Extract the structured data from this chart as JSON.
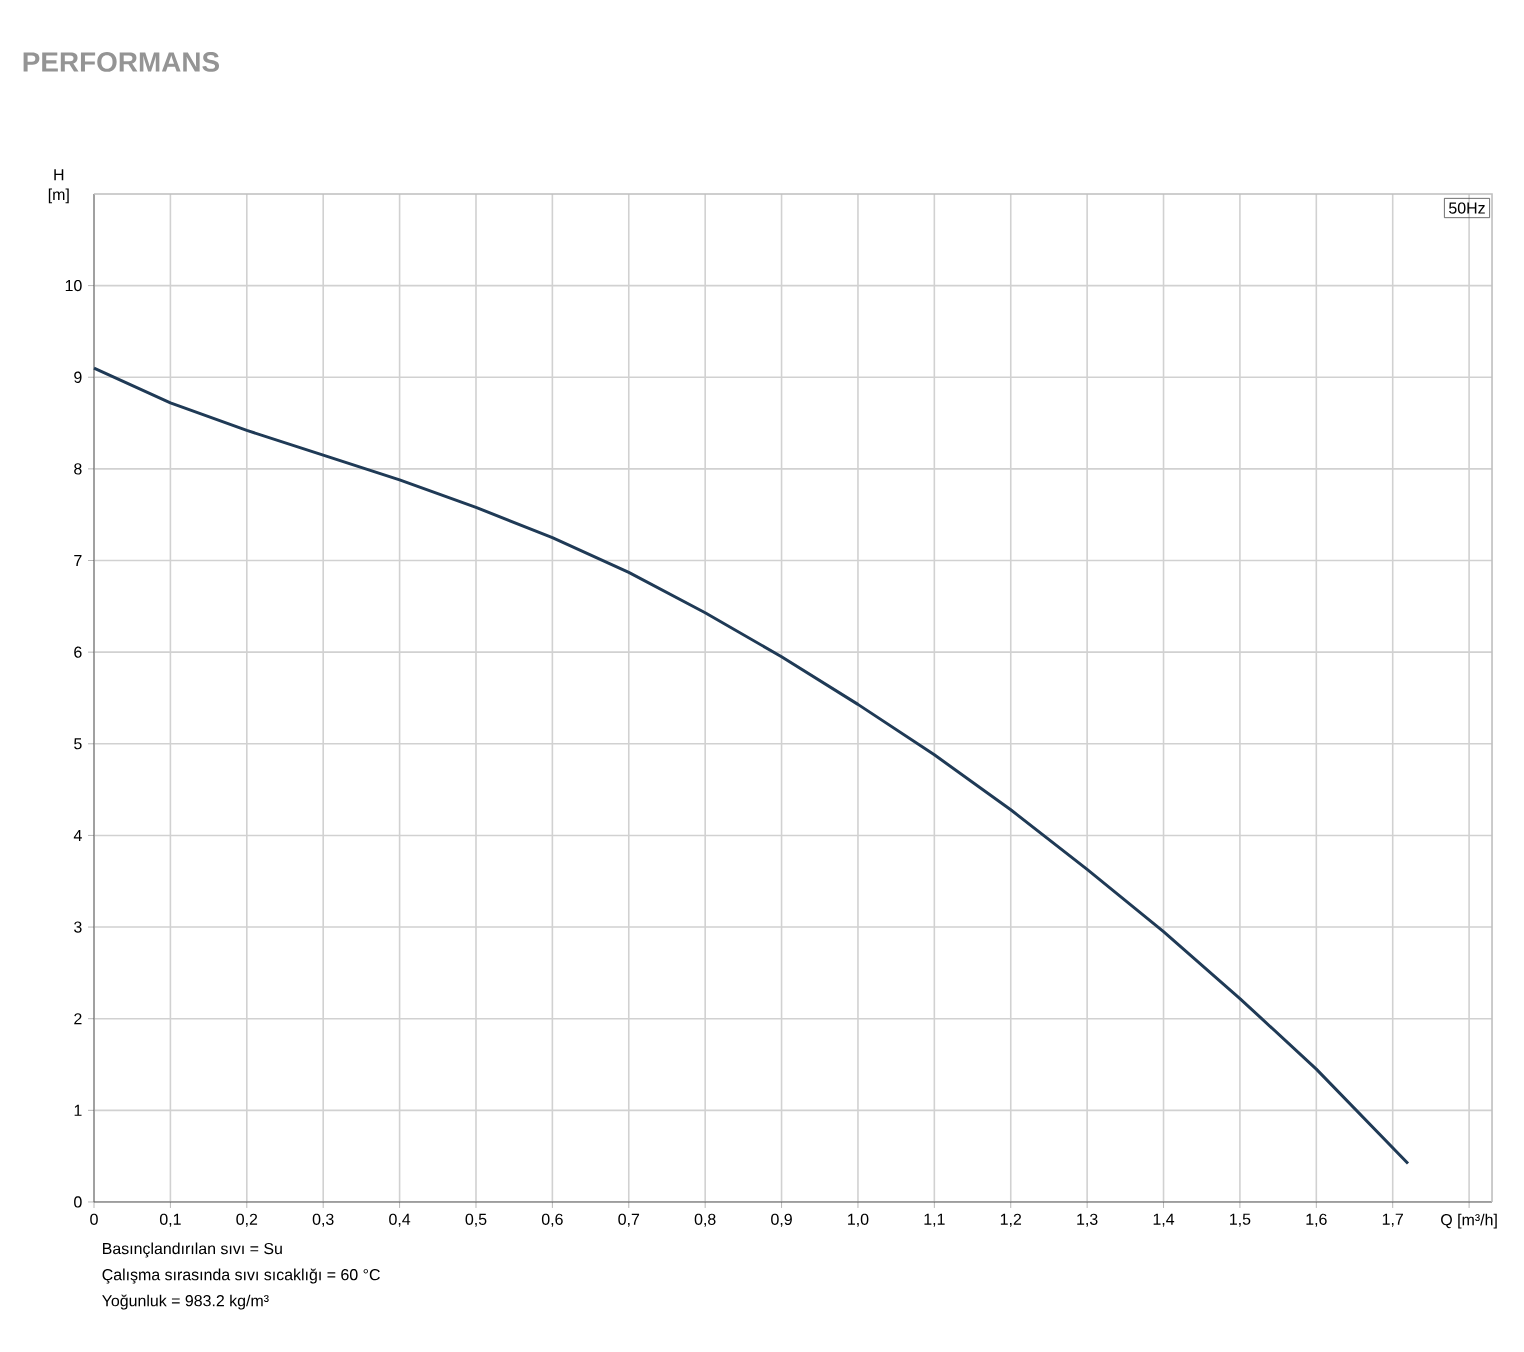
{
  "chart_data": {
    "type": "line",
    "title": "PERFORMANS",
    "xlabel": "Q [m³/h]",
    "ylabel": "H [m]",
    "x": [
      0,
      0.1,
      0.2,
      0.3,
      0.4,
      0.5,
      0.6,
      0.7,
      0.8,
      0.9,
      1.0,
      1.1,
      1.2,
      1.3,
      1.4,
      1.5,
      1.6,
      1.72
    ],
    "series": [
      {
        "color": "#1f3a56",
        "values": [
          9.1,
          8.72,
          8.42,
          8.15,
          7.88,
          7.58,
          7.25,
          6.87,
          6.43,
          5.95,
          5.43,
          4.88,
          4.28,
          3.63,
          2.95,
          2.22,
          1.45,
          0.42
        ]
      }
    ],
    "xlim": [
      0,
      1.83
    ],
    "ylim": [
      0,
      11
    ],
    "xticks": [
      0,
      {
        "value": 0.1,
        "label": "0,1"
      },
      {
        "value": 0.2,
        "label": "0,2"
      },
      {
        "value": 0.3,
        "label": "0,3"
      },
      {
        "value": 0.4,
        "label": "0,4"
      },
      {
        "value": 0.5,
        "label": "0,5"
      },
      {
        "value": 0.6,
        "label": "0,6"
      },
      {
        "value": 0.7,
        "label": "0,7"
      },
      {
        "value": 0.8,
        "label": "0,8"
      },
      {
        "value": 0.9,
        "label": "0,9"
      },
      {
        "value": 1.0,
        "label": "1,0"
      },
      {
        "value": 1.1,
        "label": "1,1"
      },
      {
        "value": 1.2,
        "label": "1,2"
      },
      {
        "value": 1.3,
        "label": "1,3"
      },
      {
        "value": 1.4,
        "label": "1,4"
      },
      {
        "value": 1.5,
        "label": "1,5"
      },
      {
        "value": 1.6,
        "label": "1,6"
      },
      {
        "value": 1.7,
        "label": "1,7"
      },
      {
        "value": 1.8,
        "label": null
      }
    ],
    "yticks": [
      0,
      1,
      2,
      3,
      4,
      5,
      6,
      7,
      8,
      9,
      10
    ],
    "grid": true,
    "line_style": "solid",
    "marker": "none",
    "annotations": [
      "50Hz",
      "Basınçlandırılan sıvı = Su",
      "Çalışma sırasında sıvı sıcaklığı = 60 °C",
      "Yoğunluk = 983.2 kg/m³"
    ]
  }
}
